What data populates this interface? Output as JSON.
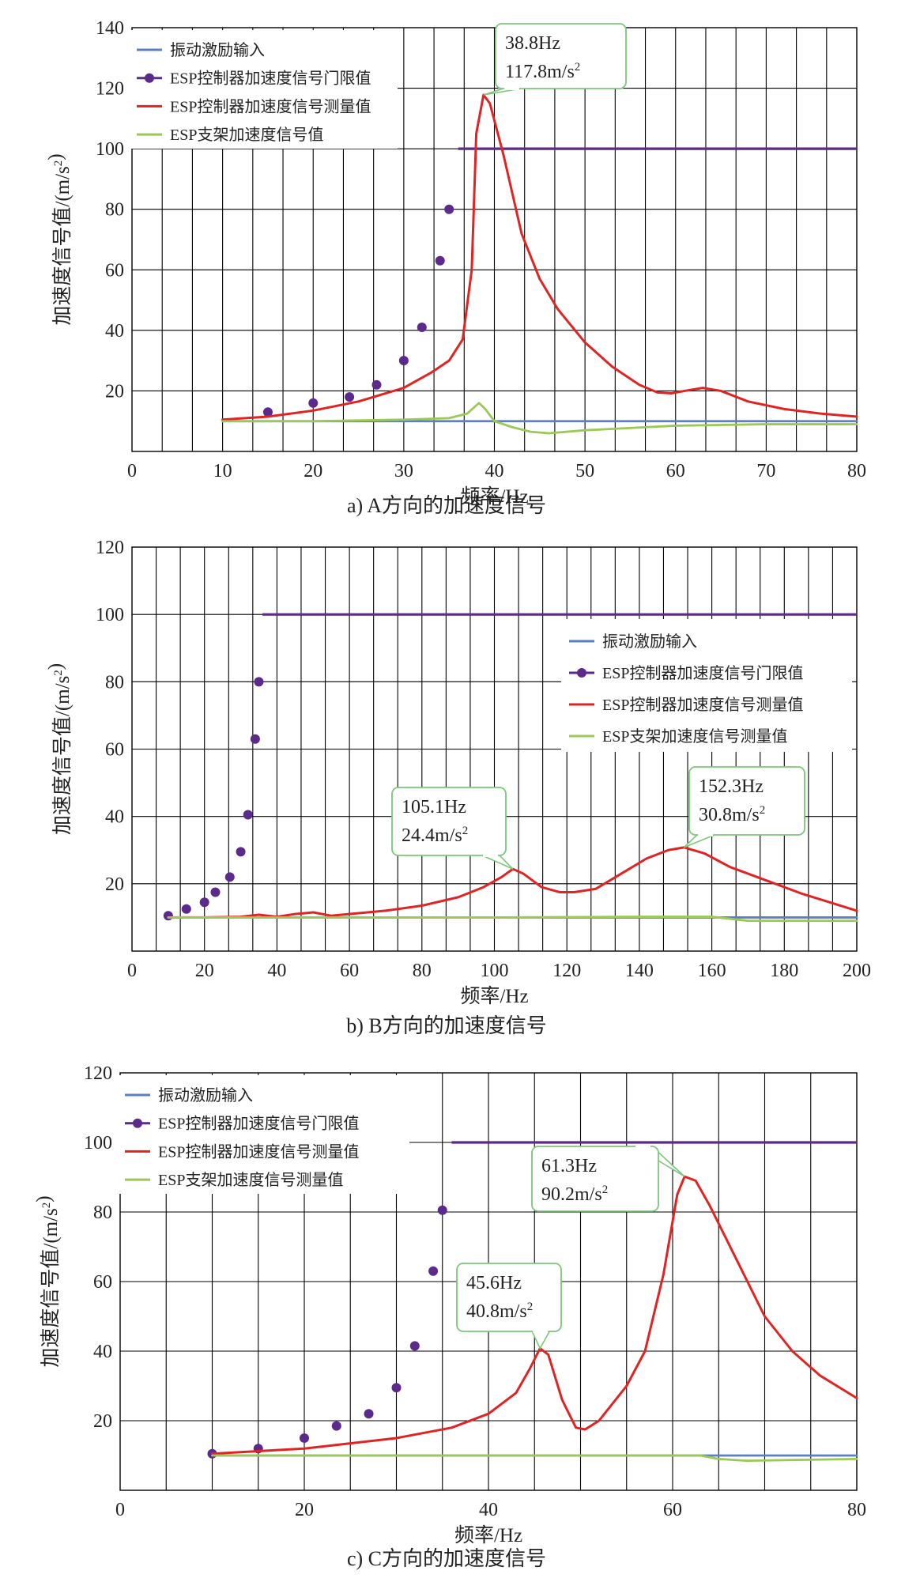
{
  "chart_data": [
    {
      "type": "line",
      "caption": "a) A方向的加速度信号",
      "xlabel": "频率/Hz",
      "ylabel": "加速度信号值/(m/s²)",
      "xlim": [
        0,
        80
      ],
      "ylim": [
        0,
        140
      ],
      "x_ticks": [
        "0",
        "10",
        "20",
        "30",
        "40",
        "50",
        "60",
        "70",
        "80"
      ],
      "y_ticks": [
        "20",
        "40",
        "60",
        "80",
        "100",
        "120",
        "140"
      ],
      "grid": true,
      "legend_position": "top-left",
      "series": [
        {
          "name": "振动激励输入",
          "color": "#5b7fc4",
          "style": "line",
          "points": [
            [
              10,
              10
            ],
            [
              80,
              10
            ]
          ]
        },
        {
          "name": "ESP控制器加速度信号门限值",
          "color": "#5b2a8c",
          "style": "markers-then-line",
          "points": [
            [
              15,
              13
            ],
            [
              20,
              16
            ],
            [
              24,
              18
            ],
            [
              27,
              22
            ],
            [
              30,
              30
            ],
            [
              32,
              41
            ],
            [
              34,
              63
            ],
            [
              35,
              80
            ]
          ],
          "line_points": [
            [
              36,
              100
            ],
            [
              80,
              100
            ]
          ]
        },
        {
          "name": "ESP控制器加速度信号测量值",
          "color": "#e02424",
          "style": "line",
          "points": [
            [
              10,
              10.5
            ],
            [
              15,
              11.5
            ],
            [
              20,
              13.5
            ],
            [
              25,
              16.5
            ],
            [
              30,
              21
            ],
            [
              33,
              26
            ],
            [
              35,
              30
            ],
            [
              36.5,
              37
            ],
            [
              37.5,
              60
            ],
            [
              38,
              105
            ],
            [
              38.8,
              117.8
            ],
            [
              39.5,
              115
            ],
            [
              41,
              98
            ],
            [
              43,
              72
            ],
            [
              45,
              57
            ],
            [
              47,
              47
            ],
            [
              50,
              36
            ],
            [
              53,
              28
            ],
            [
              56,
              22
            ],
            [
              58,
              19.5
            ],
            [
              59.5,
              19.2
            ],
            [
              61,
              20
            ],
            [
              63,
              21
            ],
            [
              65,
              20
            ],
            [
              68,
              16.5
            ],
            [
              72,
              14
            ],
            [
              76,
              12.5
            ],
            [
              80,
              11.5
            ]
          ]
        },
        {
          "name": "ESP支架加速度信号值",
          "color": "#9cc955",
          "style": "line",
          "points": [
            [
              10,
              10
            ],
            [
              20,
              10
            ],
            [
              30,
              10.5
            ],
            [
              35,
              11
            ],
            [
              37,
              12.5
            ],
            [
              38.3,
              16
            ],
            [
              39,
              14
            ],
            [
              40,
              10
            ],
            [
              42,
              8
            ],
            [
              44,
              6.5
            ],
            [
              46,
              6
            ],
            [
              50,
              7
            ],
            [
              60,
              8.5
            ],
            [
              70,
              9
            ],
            [
              80,
              9
            ]
          ]
        }
      ],
      "annotations": [
        {
          "lines": [
            "38.8Hz",
            "117.8m/s²"
          ],
          "x": 38.8,
          "y": 117.8
        }
      ]
    },
    {
      "type": "line",
      "caption": "b) B方向的加速度信号",
      "xlabel": "频率/Hz",
      "ylabel": "加速度信号值/(m/s²)",
      "xlim": [
        0,
        200
      ],
      "ylim": [
        0,
        120
      ],
      "x_ticks": [
        "0",
        "20",
        "40",
        "60",
        "80",
        "100",
        "120",
        "140",
        "160",
        "180",
        "200"
      ],
      "y_ticks": [
        "20",
        "40",
        "60",
        "80",
        "100",
        "120"
      ],
      "grid": true,
      "legend_position": "middle-right",
      "series": [
        {
          "name": "振动激励输入",
          "color": "#5b7fc4",
          "style": "line",
          "points": [
            [
              10,
              10
            ],
            [
              200,
              10
            ]
          ]
        },
        {
          "name": "ESP控制器加速度信号门限值",
          "color": "#5b2a8c",
          "style": "markers-then-line",
          "points": [
            [
              10,
              10.5
            ],
            [
              15,
              12.5
            ],
            [
              20,
              14.5
            ],
            [
              23,
              17.5
            ],
            [
              27,
              22
            ],
            [
              30,
              29.5
            ],
            [
              32,
              40.5
            ],
            [
              34,
              63
            ],
            [
              35,
              80
            ]
          ],
          "line_points": [
            [
              36,
              100
            ],
            [
              200,
              100
            ]
          ]
        },
        {
          "name": "ESP控制器加速度信号测量值",
          "color": "#e02424",
          "style": "line",
          "points": [
            [
              10,
              10
            ],
            [
              20,
              10
            ],
            [
              30,
              10.2
            ],
            [
              35,
              10.8
            ],
            [
              40,
              10.2
            ],
            [
              45,
              11
            ],
            [
              50,
              11.5
            ],
            [
              55,
              10.5
            ],
            [
              60,
              11
            ],
            [
              70,
              12
            ],
            [
              80,
              13.5
            ],
            [
              90,
              16
            ],
            [
              97,
              19
            ],
            [
              102,
              22
            ],
            [
              105.1,
              24.4
            ],
            [
              108,
              23
            ],
            [
              113,
              19
            ],
            [
              118,
              17.5
            ],
            [
              122,
              17.5
            ],
            [
              128,
              18.5
            ],
            [
              135,
              23
            ],
            [
              142,
              27.5
            ],
            [
              148,
              30
            ],
            [
              152.3,
              30.8
            ],
            [
              158,
              29
            ],
            [
              165,
              25
            ],
            [
              175,
              21
            ],
            [
              185,
              17
            ],
            [
              200,
              12
            ]
          ]
        },
        {
          "name": "ESP支架加速度信号测量值",
          "color": "#9cc955",
          "style": "line",
          "points": [
            [
              10,
              10
            ],
            [
              100,
              10
            ],
            [
              140,
              10.2
            ],
            [
              160,
              10.2
            ],
            [
              170,
              9
            ],
            [
              200,
              9
            ]
          ]
        }
      ],
      "annotations": [
        {
          "lines": [
            "105.1Hz",
            "24.4m/s²"
          ],
          "x": 105.1,
          "y": 24.4
        },
        {
          "lines": [
            "152.3Hz",
            "30.8m/s²"
          ],
          "x": 152.3,
          "y": 30.8
        }
      ]
    },
    {
      "type": "line",
      "caption": "c) C方向的加速度信号",
      "xlabel": "频率/Hz",
      "ylabel": "加速度信号值/(m/s²)",
      "xlim": [
        0,
        80
      ],
      "ylim": [
        0,
        120
      ],
      "x_ticks": [
        "0",
        "20",
        "40",
        "60",
        "80"
      ],
      "y_ticks": [
        "20",
        "40",
        "60",
        "80",
        "100",
        "120"
      ],
      "grid": true,
      "legend_position": "top-left",
      "series": [
        {
          "name": "振动激励输入",
          "color": "#5b7fc4",
          "style": "line",
          "points": [
            [
              10,
              10
            ],
            [
              80,
              10
            ]
          ]
        },
        {
          "name": "ESP控制器加速度信号门限值",
          "color": "#5b2a8c",
          "style": "markers-then-line",
          "points": [
            [
              10,
              10.5
            ],
            [
              15,
              12
            ],
            [
              20,
              15
            ],
            [
              23.5,
              18.5
            ],
            [
              27,
              22
            ],
            [
              30,
              29.5
            ],
            [
              32,
              41.5
            ],
            [
              34,
              63
            ],
            [
              35,
              80.5
            ]
          ],
          "line_points": [
            [
              36,
              100
            ],
            [
              80,
              100
            ]
          ]
        },
        {
          "name": "ESP控制器加速度信号测量值",
          "color": "#e02424",
          "style": "line",
          "points": [
            [
              10,
              10.5
            ],
            [
              20,
              12
            ],
            [
              30,
              15
            ],
            [
              36,
              18
            ],
            [
              40,
              22
            ],
            [
              43,
              28
            ],
            [
              44.5,
              35
            ],
            [
              45.6,
              40.8
            ],
            [
              46.5,
              39
            ],
            [
              48,
              26
            ],
            [
              49.5,
              18
            ],
            [
              50.5,
              17.5
            ],
            [
              52,
              20
            ],
            [
              55,
              30
            ],
            [
              57,
              40
            ],
            [
              59,
              62
            ],
            [
              60.5,
              85
            ],
            [
              61.3,
              90.2
            ],
            [
              62.5,
              89
            ],
            [
              64,
              82
            ],
            [
              67,
              66
            ],
            [
              70,
              50
            ],
            [
              73,
              40
            ],
            [
              76,
              33
            ],
            [
              80,
              26.5
            ]
          ]
        },
        {
          "name": "ESP支架加速度信号测量值",
          "color": "#9cc955",
          "style": "line",
          "points": [
            [
              10,
              10
            ],
            [
              50,
              10
            ],
            [
              58,
              10
            ],
            [
              63,
              10
            ],
            [
              65,
              9
            ],
            [
              68,
              8.5
            ],
            [
              80,
              9
            ]
          ]
        }
      ],
      "annotations": [
        {
          "lines": [
            "45.6Hz",
            "40.8m/s²"
          ],
          "x": 45.6,
          "y": 40.8
        },
        {
          "lines": [
            "61.3Hz",
            "90.2m/s²"
          ],
          "x": 61.3,
          "y": 90.2
        }
      ]
    }
  ]
}
